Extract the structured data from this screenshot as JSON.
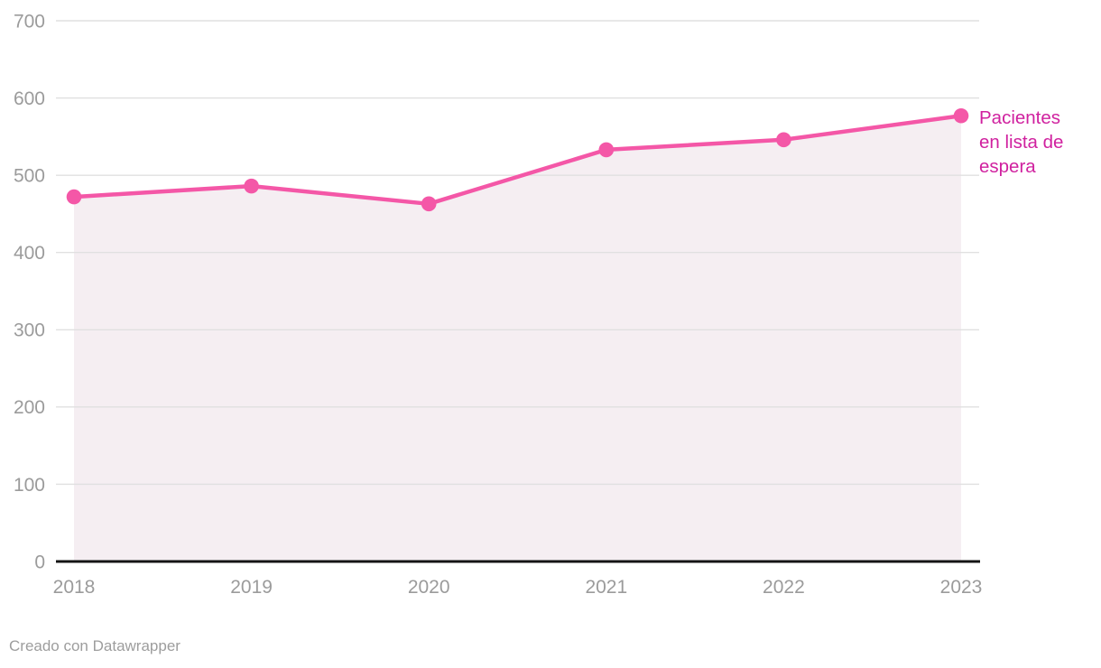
{
  "chart_data": {
    "type": "area",
    "title": "",
    "xlabel": "",
    "ylabel": "",
    "categories": [
      "2018",
      "2019",
      "2020",
      "2021",
      "2022",
      "2023"
    ],
    "series": [
      {
        "name": "Pacientes en lista de espera",
        "values": [
          472,
          486,
          463,
          533,
          546,
          577
        ]
      }
    ],
    "series_label": "Pacientes en lista de espera",
    "ylim": [
      0,
      700
    ],
    "yticks": [
      0,
      100,
      200,
      300,
      400,
      500,
      600,
      700
    ],
    "grid": true,
    "legend_position": "inline-right-of-last-point"
  },
  "colors": {
    "line": "#f457a7",
    "point": "#f457a7",
    "area_fill": "#f5eef2",
    "label_text": "#d0219f",
    "grid": "#e0e0e0",
    "axis": "#141414",
    "tick_text": "#9b9b9b",
    "footer_text": "#9d9d9d",
    "background": "#ffffff"
  },
  "footer": {
    "caption": "Creado con Datawrapper"
  }
}
